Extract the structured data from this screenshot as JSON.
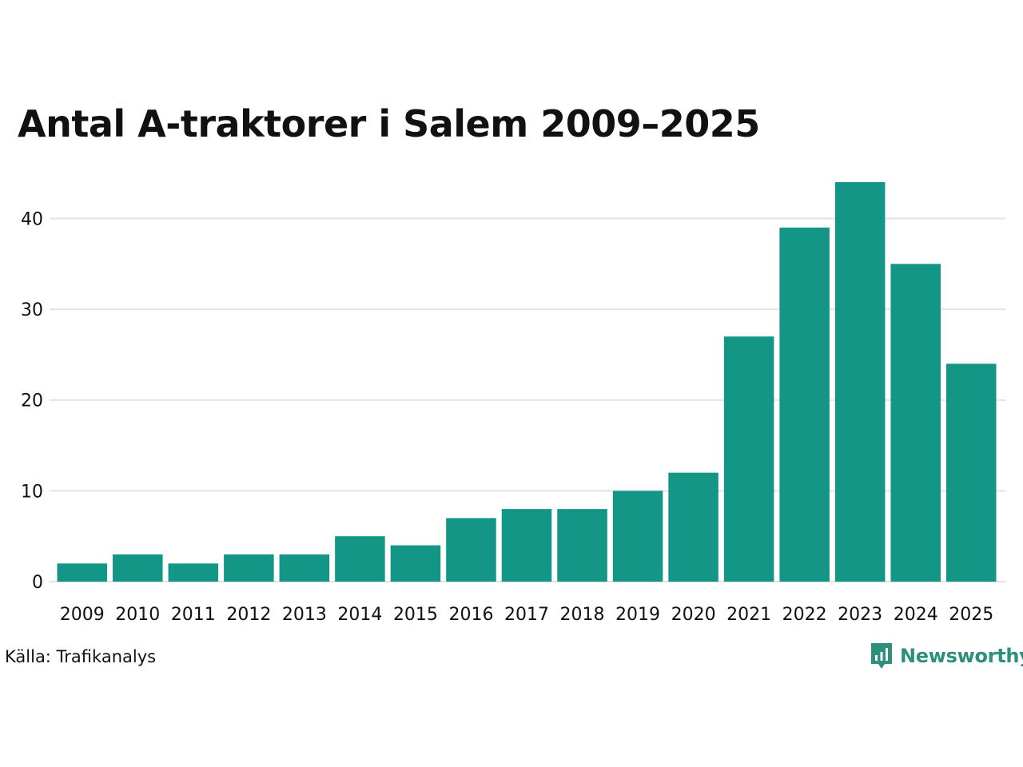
{
  "title": "Antal A-traktorer i Salem 2009–2025",
  "source": "Källa: Trafikanalys",
  "brand": {
    "name": "Newsworthy",
    "color": "#2e8f7c"
  },
  "colors": {
    "bar": "#149687",
    "grid": "#e3e3e3",
    "text": "#111111"
  },
  "chart_data": {
    "type": "bar",
    "title": "Antal A-traktorer i Salem 2009–2025",
    "xlabel": "",
    "ylabel": "",
    "categories": [
      "2009",
      "2010",
      "2011",
      "2012",
      "2013",
      "2014",
      "2015",
      "2016",
      "2017",
      "2018",
      "2019",
      "2020",
      "2021",
      "2022",
      "2023",
      "2024",
      "2025"
    ],
    "values": [
      2,
      3,
      2,
      3,
      3,
      5,
      4,
      7,
      8,
      8,
      10,
      12,
      27,
      39,
      44,
      35,
      24
    ],
    "ylim": [
      0,
      44
    ],
    "yticks": [
      0,
      10,
      20,
      30,
      40
    ],
    "grid": true
  }
}
